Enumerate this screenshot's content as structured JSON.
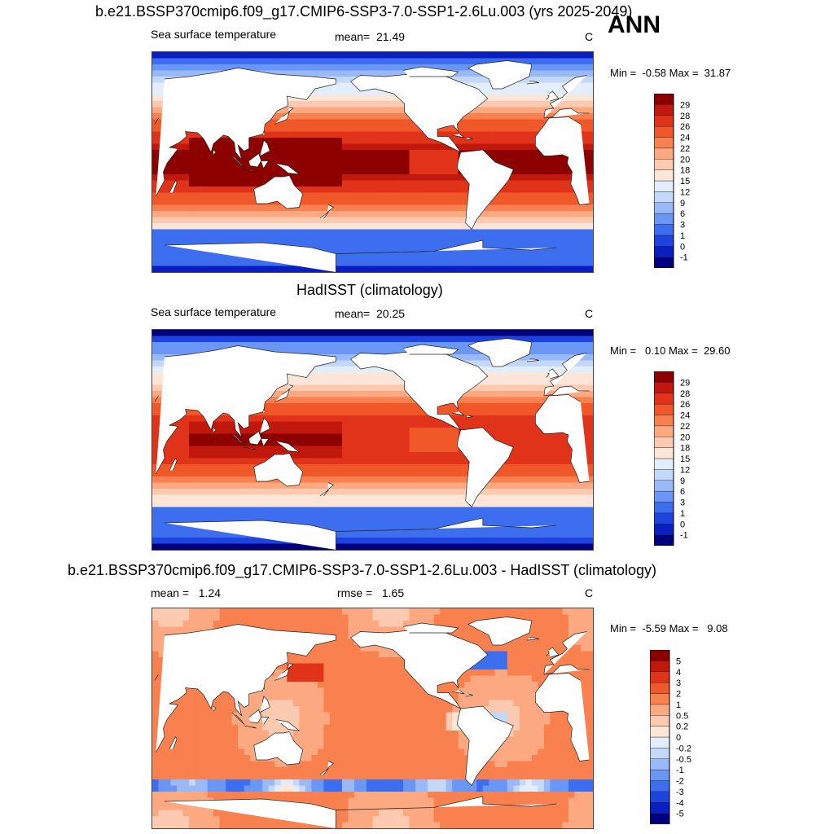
{
  "chart_data": [
    {
      "type": "heatmap",
      "title": "b.e21.BSSP370cmip6.f09_g17.CMIP6-SSP3-7.0-SSP1-2.6Lu.003 (yrs 2025-2049)",
      "season": "ANN",
      "variable": "Sea surface temperature",
      "stat_label": "mean=",
      "stat_value": "21.49",
      "units": "C",
      "min_label": "Min =",
      "min_value": "-0.58",
      "max_label": "Max =",
      "max_value": "31.87",
      "colorbar_levels": [
        "-1",
        "0",
        "1",
        "3",
        "6",
        "9",
        "12",
        "15",
        "18",
        "20",
        "22",
        "24",
        "26",
        "28",
        "29"
      ],
      "colorbar_colors": [
        "#00007f",
        "#0a1fbf",
        "#1e44e0",
        "#3d6ef0",
        "#6a96f5",
        "#99b9f9",
        "#c4d8fc",
        "#e3eefd",
        "#fde6d8",
        "#fccab0",
        "#fca982",
        "#f9814f",
        "#f0582a",
        "#e0331a",
        "#c0180c",
        "#8c0000"
      ]
    },
    {
      "type": "heatmap",
      "title": "HadISST (climatology)",
      "variable": "Sea surface temperature",
      "stat_label": "mean=",
      "stat_value": "20.25",
      "units": "C",
      "min_label": "Min =",
      "min_value": "0.10",
      "max_label": "Max =",
      "max_value": "29.60",
      "colorbar_levels": [
        "-1",
        "0",
        "1",
        "3",
        "6",
        "9",
        "12",
        "15",
        "18",
        "20",
        "22",
        "24",
        "26",
        "28",
        "29"
      ],
      "colorbar_colors": [
        "#00007f",
        "#0a1fbf",
        "#1e44e0",
        "#3d6ef0",
        "#6a96f5",
        "#99b9f9",
        "#c4d8fc",
        "#e3eefd",
        "#fde6d8",
        "#fccab0",
        "#fca982",
        "#f9814f",
        "#f0582a",
        "#e0331a",
        "#c0180c",
        "#8c0000"
      ]
    },
    {
      "type": "heatmap",
      "title": "b.e21.BSSP370cmip6.f09_g17.CMIP6-SSP3-7.0-SSP1-2.6Lu.003 - HadISST (climatology)",
      "stat_label": "mean =",
      "stat_value": "1.24",
      "rmse_label": "rmse =",
      "rmse_value": "1.65",
      "units": "C",
      "min_label": "Min =",
      "min_value": "-5.59",
      "max_label": "Max =",
      "max_value": "9.08",
      "colorbar_levels": [
        "-5",
        "-4",
        "-3",
        "-2",
        "-1",
        "-0.5",
        "-0.2",
        "0",
        "0.2",
        "0.5",
        "1",
        "2",
        "3",
        "4",
        "5"
      ],
      "colorbar_colors": [
        "#00007f",
        "#0a1fbf",
        "#1e44e0",
        "#3d6ef0",
        "#6a96f5",
        "#99b9f9",
        "#c4d8fc",
        "#e3eefd",
        "#fde6d8",
        "#fccab0",
        "#fca982",
        "#f9814f",
        "#f0582a",
        "#e0331a",
        "#c0180c",
        "#8c0000"
      ]
    }
  ]
}
